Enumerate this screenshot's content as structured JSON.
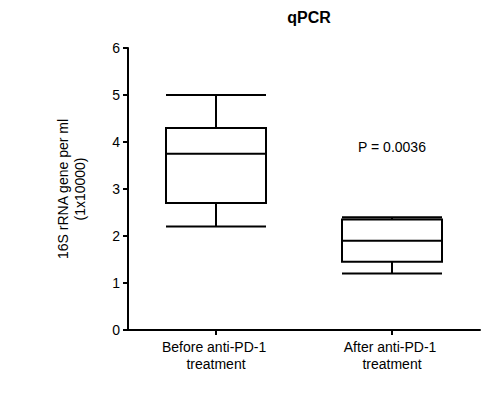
{
  "chart_data": {
    "type": "boxplot",
    "title": "qPCR",
    "ylabel": [
      "16S rRNA gene per ml",
      "(1x10000)"
    ],
    "categories": [
      "Before anti-PD-1 treatment",
      "After anti-PD-1 treatment"
    ],
    "boxes": [
      [
        2.2,
        2.7,
        3.75,
        4.3,
        5.0
      ],
      [
        1.2,
        1.45,
        1.9,
        2.35,
        2.4
      ]
    ],
    "annotation": "P = 0.0036",
    "color": "#000000",
    "ylim": [
      0,
      6
    ],
    "yticks": [
      0,
      1,
      2,
      3,
      4,
      5,
      6
    ],
    "grid": false
  }
}
